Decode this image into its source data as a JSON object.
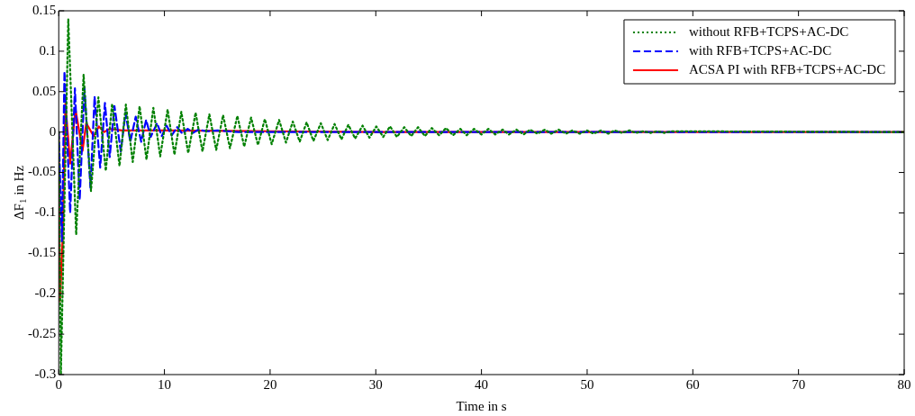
{
  "chart_data": {
    "type": "line",
    "xlabel": "Time in s",
    "ylabel": "ΔF$_{1}$ in Hz",
    "xlim": [
      0,
      80
    ],
    "ylim": [
      -0.3,
      0.15
    ],
    "xticks": [
      0,
      10,
      20,
      30,
      40,
      50,
      60,
      70,
      80
    ],
    "yticks": [
      -0.3,
      -0.25,
      -0.2,
      -0.15,
      -0.1,
      -0.05,
      0,
      0.05,
      0.1,
      0.15
    ],
    "grid": false,
    "legend": "top right",
    "marker": "none",
    "series": [
      {
        "name": "without RFB+TCPS+AC-DC",
        "color": "#008000",
        "line_style": "dotted",
        "x": [
          0,
          0.2,
          0.9,
          1.65,
          2.35,
          3.05,
          3.75,
          4.45,
          5.05,
          5.75,
          6.35,
          7.0,
          7.65,
          8.3,
          8.95,
          9.6,
          10.3,
          10.95,
          11.6,
          12.25,
          12.95,
          13.6,
          14.25,
          14.9,
          15.55,
          16.2,
          16.9,
          17.55,
          18.2,
          18.85,
          19.5,
          20.15,
          20.85,
          21.5,
          22.15,
          22.8,
          23.45,
          24.1,
          24.8,
          25.45,
          26.1,
          26.75,
          27.4,
          28.05,
          28.75,
          29.4,
          30.05,
          30.7,
          31.35,
          32,
          32.7,
          33.35,
          34,
          34.65,
          35.3,
          36,
          36.65,
          37.3,
          38,
          38.6,
          39.3,
          40,
          40.65,
          41.3,
          42,
          42.6,
          43.3,
          44,
          44.6,
          45.3,
          46,
          46.6,
          47.3,
          48,
          48.6,
          49.3,
          50,
          50.6,
          51.3,
          52,
          52.6,
          53.3,
          54,
          54.6,
          55.3,
          56,
          56.6,
          57.3,
          58,
          80
        ],
        "values": [
          0,
          -0.3,
          0.14,
          -0.127,
          0.071,
          -0.073,
          0.043,
          -0.048,
          0.035,
          -0.042,
          0.034,
          -0.037,
          0.032,
          -0.034,
          0.03,
          -0.03,
          0.028,
          -0.028,
          0.025,
          -0.026,
          0.024,
          -0.024,
          0.022,
          -0.022,
          0.021,
          -0.02,
          0.02,
          -0.018,
          0.018,
          -0.016,
          0.016,
          -0.015,
          0.015,
          -0.013,
          0.013,
          -0.012,
          0.012,
          -0.011,
          0.011,
          -0.01,
          0.01,
          -0.009,
          0.009,
          -0.008,
          0.008,
          -0.007,
          0.007,
          -0.006,
          0.007,
          -0.006,
          0.006,
          -0.005,
          0.006,
          -0.005,
          0.005,
          -0.004,
          0.005,
          -0.004,
          0.004,
          -0.004,
          0.004,
          -0.003,
          0.004,
          -0.003,
          0.003,
          -0.003,
          0.003,
          -0.003,
          0.003,
          -0.002,
          0.003,
          -0.002,
          0.003,
          -0.002,
          0.002,
          -0.002,
          0.002,
          -0.002,
          0.002,
          -0.002,
          0.002,
          -0.001,
          0.002,
          -0.001,
          0.001,
          -0.001,
          0.001,
          -0.001,
          0.001,
          0
        ]
      },
      {
        "name": "with RFB+TCPS+AC-DC",
        "color": "#0000ff",
        "line_style": "dashed",
        "x": [
          0,
          0.3,
          0.54,
          1.08,
          1.53,
          1.98,
          2.43,
          3.0,
          3.39,
          3.92,
          4.37,
          4.82,
          5.27,
          5.87,
          6.32,
          6.77,
          7.28,
          7.8,
          8.27,
          8.7,
          9.3,
          9.75,
          10.2,
          10.7,
          11.2,
          11.7,
          12.2,
          12.7,
          13.2,
          14,
          15,
          17,
          80
        ],
        "values": [
          0,
          -0.135,
          0.075,
          -0.1,
          0.054,
          -0.084,
          0.055,
          -0.069,
          0.044,
          -0.044,
          0.036,
          -0.031,
          0.032,
          -0.024,
          0.024,
          -0.012,
          0.019,
          -0.012,
          0.015,
          -0.006,
          0.011,
          -0.005,
          0.008,
          -0.004,
          0.006,
          -0.002,
          0.004,
          -0.001,
          0.003,
          0.001,
          0.002,
          0,
          0
        ]
      },
      {
        "name": "ACSA PI with RFB+TCPS+AC-DC",
        "color": "#ff0000",
        "line_style": "solid",
        "x": [
          0,
          0.1,
          0.15,
          0.35,
          0.63,
          1.08,
          1.58,
          2.25,
          2.6,
          3.3,
          3.8,
          4.3,
          4.8,
          6,
          10,
          20,
          30,
          80
        ],
        "values": [
          0,
          -0.209,
          -0.2,
          -0.137,
          0.035,
          -0.039,
          0.028,
          -0.023,
          0.011,
          -0.005,
          0.007,
          0,
          0.004,
          0.002,
          0.002,
          0.001,
          0,
          0
        ]
      }
    ]
  }
}
